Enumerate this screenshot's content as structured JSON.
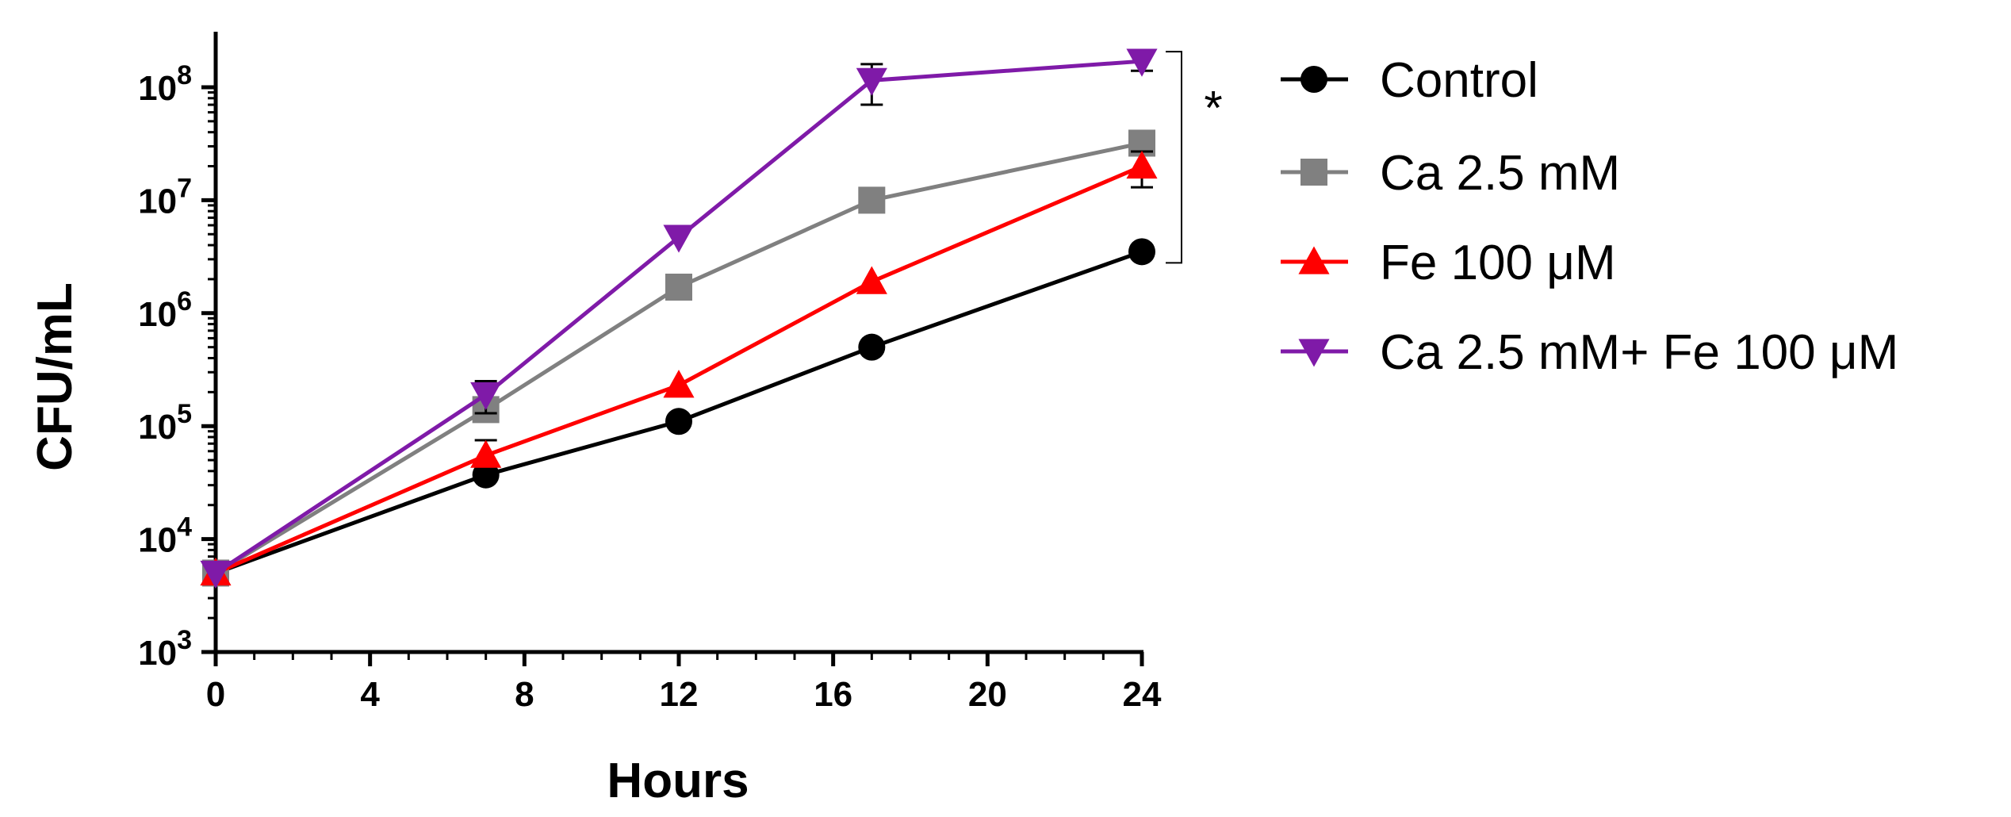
{
  "chart_data": {
    "type": "line",
    "title": "",
    "xlabel": "Hours",
    "ylabel": "CFU/mL",
    "x_ticks": [
      "0",
      "4",
      "8",
      "12",
      "16",
      "20",
      "24"
    ],
    "x_tick_values": [
      0,
      4,
      8,
      12,
      16,
      20,
      24
    ],
    "xlim": [
      0,
      24
    ],
    "y_scale": "log",
    "ylim": [
      1000,
      200000000
    ],
    "y_ticks": [
      {
        "base": "10",
        "exp": "3",
        "value": 1000
      },
      {
        "base": "10",
        "exp": "4",
        "value": 10000
      },
      {
        "base": "10",
        "exp": "5",
        "value": 100000
      },
      {
        "base": "10",
        "exp": "6",
        "value": 1000000
      },
      {
        "base": "10",
        "exp": "7",
        "value": 10000000
      },
      {
        "base": "10",
        "exp": "8",
        "value": 100000000
      }
    ],
    "x": [
      0,
      7,
      12,
      17,
      24
    ],
    "series": [
      {
        "name": "Control",
        "color": "#000000",
        "marker": "circle",
        "values": [
          5000,
          37000,
          110000,
          500000,
          3500000
        ],
        "error": [
          0,
          0,
          0,
          0,
          0
        ]
      },
      {
        "name": "Ca 2.5 mM",
        "color": "#808080",
        "marker": "square",
        "values": [
          5000,
          140000,
          1700000,
          10000000,
          32000000
        ],
        "error": [
          0,
          0,
          0,
          0,
          0
        ]
      },
      {
        "name": "Fe 100 μM",
        "color": "#ff0000",
        "marker": "triangle-up",
        "values": [
          5000,
          55000,
          230000,
          1900000,
          20000000
        ],
        "error": [
          0,
          20000,
          0,
          0,
          7000000
        ]
      },
      {
        "name": "Ca 2.5 mM+ Fe 100 μM",
        "color": "#7f1aa8",
        "marker": "triangle-down",
        "values": [
          5000,
          190000,
          4700000,
          115000000,
          170000000
        ],
        "error": [
          0,
          60000,
          0,
          45000000,
          30000000
        ]
      }
    ],
    "annotation": {
      "text": "*",
      "bracket_from": 3500000,
      "bracket_to": 170000000
    },
    "legend": "right"
  }
}
